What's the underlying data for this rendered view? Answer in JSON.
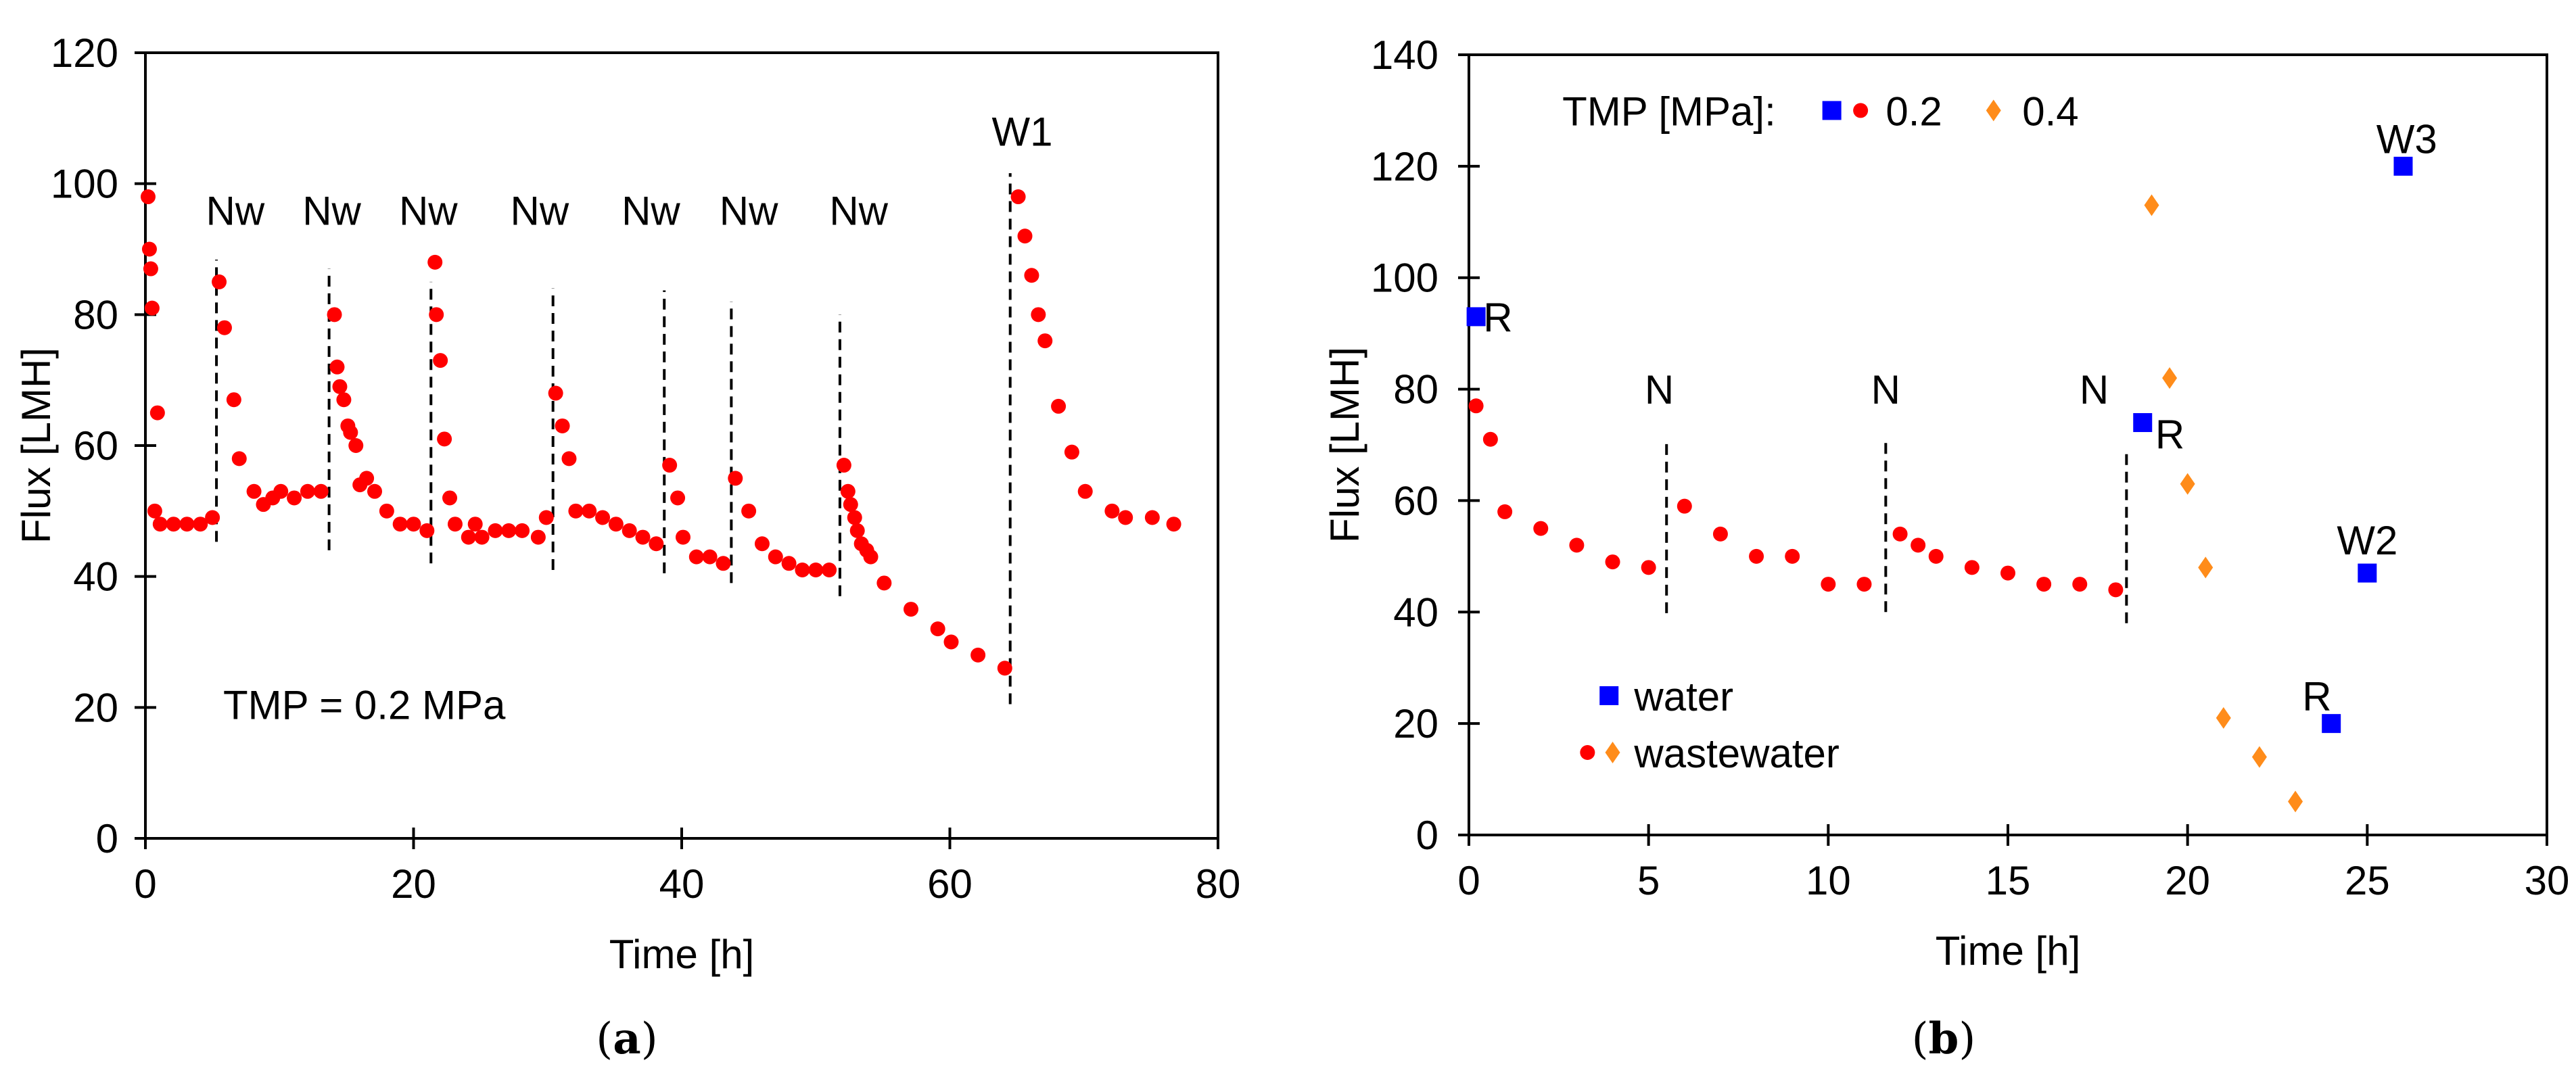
{
  "chart_data": [
    {
      "type": "scatter",
      "panel": "a",
      "caption_open": "(",
      "caption_letter": "a",
      "caption_close": ")",
      "xlabel": "Time [h]",
      "ylabel": "Flux [LMH]",
      "xlim": [
        0,
        80
      ],
      "ylim": [
        0,
        120
      ],
      "xticks": [
        0,
        20,
        40,
        60,
        80
      ],
      "yticks": [
        0,
        20,
        40,
        60,
        80,
        100,
        120
      ],
      "grid": false,
      "annotation_text": "TMP = 0.2 MPa",
      "series": [
        {
          "name": "wastewater 0.2 MPa",
          "color": "#ff0000",
          "marker": "circle",
          "x": [
            0.2,
            0.3,
            0.4,
            0.5,
            0.9,
            0.7,
            1.1,
            2.1,
            3.1,
            4.1,
            5.0,
            5.5,
            5.9,
            6.6,
            7.0,
            8.1,
            8.8,
            9.5,
            10.1,
            11.1,
            12.1,
            13.1,
            14.1,
            14.3,
            14.5,
            14.8,
            15.1,
            15.3,
            15.7,
            16.0,
            16.5,
            17.1,
            18.0,
            19.0,
            20.0,
            21.0,
            21.6,
            21.7,
            22.0,
            22.3,
            22.7,
            23.1,
            24.1,
            24.6,
            25.1,
            26.1,
            27.1,
            28.1,
            29.3,
            29.9,
            30.6,
            31.1,
            31.6,
            32.1,
            33.1,
            34.1,
            35.1,
            36.1,
            37.1,
            38.1,
            39.1,
            39.7,
            40.1,
            41.1,
            42.1,
            43.1,
            44.0,
            45.0,
            46.0,
            47.0,
            48.0,
            49.0,
            50.0,
            51.0,
            52.1,
            52.4,
            52.6,
            52.9,
            53.1,
            53.4,
            53.8,
            54.1,
            55.1,
            57.1,
            59.1,
            60.1,
            62.1,
            64.1,
            65.1,
            65.6,
            66.1,
            66.6,
            67.1,
            68.1,
            69.1,
            70.1,
            72.1,
            73.1,
            75.1,
            76.7
          ],
          "y": [
            98,
            90,
            87,
            81,
            65,
            50,
            48,
            48,
            48,
            48,
            49,
            85,
            78,
            67,
            58,
            53,
            51,
            52,
            53,
            52,
            53,
            53,
            80,
            72,
            69,
            67,
            63,
            62,
            60,
            54,
            55,
            53,
            50,
            48,
            48,
            47,
            88,
            80,
            73,
            61,
            52,
            48,
            46,
            48,
            46,
            47,
            47,
            47,
            46,
            49,
            68,
            63,
            58,
            50,
            50,
            49,
            48,
            47,
            46,
            45,
            57,
            52,
            46,
            43,
            43,
            42,
            55,
            50,
            45,
            43,
            42,
            41,
            41,
            41,
            57,
            53,
            51,
            49,
            47,
            45,
            44,
            43,
            39,
            35,
            32,
            30,
            28,
            26,
            98,
            92,
            86,
            80,
            76,
            66,
            59,
            53,
            50,
            49,
            49,
            48
          ]
        }
      ],
      "vlines": [
        {
          "label": "Nw",
          "x": 5.3,
          "y": [
            45.3,
            88.4
          ]
        },
        {
          "label": "Nw",
          "x": 13.7,
          "y": [
            44,
            87
          ]
        },
        {
          "label": "Nw",
          "x": 21.3,
          "y": [
            42,
            85
          ]
        },
        {
          "label": "Nw",
          "x": 30.4,
          "y": [
            41,
            84
          ]
        },
        {
          "label": "Nw",
          "x": 38.7,
          "y": [
            40.5,
            83.7
          ]
        },
        {
          "label": "Nw",
          "x": 43.7,
          "y": [
            39,
            82
          ]
        },
        {
          "label": "Nw",
          "x": 51.8,
          "y": [
            37,
            80
          ]
        },
        {
          "label": "W1",
          "x": 64.5,
          "y": [
            20.5,
            101.6
          ]
        }
      ]
    },
    {
      "type": "scatter",
      "panel": "b",
      "caption_open": "(",
      "caption_letter": "b",
      "caption_close": ")",
      "xlabel": "Time [h]",
      "ylabel": "Flux [LMH]",
      "xlim": [
        0,
        30
      ],
      "ylim": [
        0,
        140
      ],
      "xticks": [
        0,
        5,
        10,
        15,
        20,
        25,
        30
      ],
      "yticks": [
        0,
        20,
        40,
        60,
        80,
        100,
        120,
        140
      ],
      "grid": false,
      "legend_top": {
        "title": "TMP [MPa]:",
        "v1": "0.2",
        "v2": "0.4"
      },
      "legend_bottom": {
        "water": "water",
        "wastewater": "wastewater"
      },
      "series": [
        {
          "name": "water",
          "color": "#0000ff",
          "marker": "square",
          "x": [
            0.2,
            18.75,
            24,
            25,
            26
          ],
          "y": [
            93,
            74,
            20,
            47,
            120
          ],
          "labels": [
            "R",
            "R",
            "R",
            "W2",
            "W3"
          ]
        },
        {
          "name": "wastewater 0.2 MPa",
          "color": "#ff0000",
          "marker": "circle",
          "x": [
            0.2,
            0.6,
            1,
            2,
            3,
            4,
            5,
            6,
            7,
            8,
            9,
            10,
            11,
            12,
            12.5,
            13,
            14,
            15,
            16,
            17,
            18
          ],
          "y": [
            77,
            71,
            58,
            55,
            52,
            49,
            48,
            59,
            54,
            50,
            50,
            45,
            45,
            54,
            52,
            50,
            48,
            47,
            45,
            45,
            44
          ]
        },
        {
          "name": "wastewater 0.4 MPa",
          "color": "#ff8c1a",
          "marker": "diamond",
          "x": [
            19,
            19.5,
            20,
            20.5,
            21,
            22,
            23
          ],
          "y": [
            113,
            82,
            63,
            48,
            21,
            14,
            6
          ]
        }
      ],
      "vlines": [
        {
          "label": "N",
          "x": 5.5,
          "y": [
            39.8,
            70.6
          ]
        },
        {
          "label": "N",
          "x": 11.6,
          "y": [
            40,
            71
          ]
        },
        {
          "label": "N",
          "x": 18.3,
          "y": [
            38,
            69
          ]
        }
      ]
    }
  ]
}
